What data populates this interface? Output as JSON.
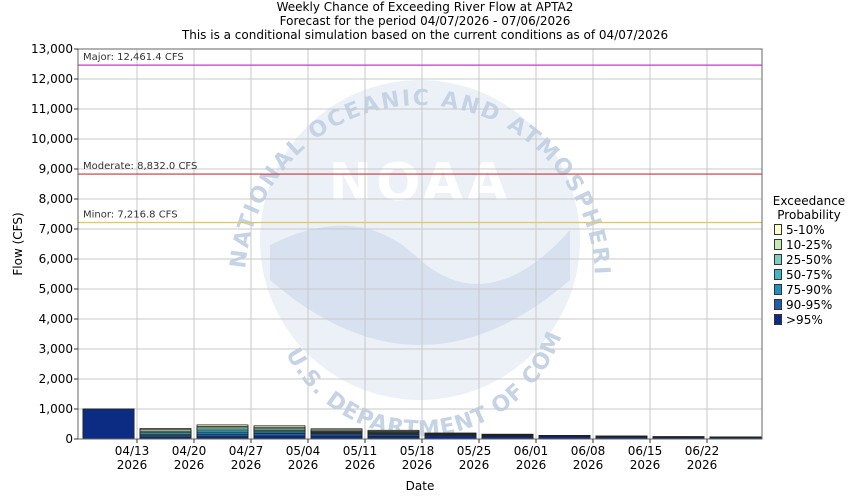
{
  "chart_data": {
    "type": "bar",
    "title_lines": [
      "Weekly Chance of Exceeding River Flow at APTA2",
      "Forecast for the period 04/07/2026 - 07/06/2026",
      "This is a conditional simulation based on the current conditions as of 04/07/2026"
    ],
    "xlabel": "Date",
    "ylabel": "Flow (CFS)",
    "ylim": [
      0,
      13000
    ],
    "yticks": [
      0,
      1000,
      2000,
      3000,
      4000,
      5000,
      6000,
      7000,
      8000,
      9000,
      10000,
      11000,
      12000,
      13000
    ],
    "ytick_labels": [
      "0",
      "1,000",
      "2,000",
      "3,000",
      "4,000",
      "5,000",
      "6,000",
      "7,000",
      "8,000",
      "9,000",
      "10,000",
      "11,000",
      "12,000",
      "13,000"
    ],
    "x_ticks": [
      {
        "line1": "04/13",
        "line2": "2026"
      },
      {
        "line1": "04/20",
        "line2": "2026"
      },
      {
        "line1": "04/27",
        "line2": "2026"
      },
      {
        "line1": "05/04",
        "line2": "2026"
      },
      {
        "line1": "05/11",
        "line2": "2026"
      },
      {
        "line1": "05/18",
        "line2": "2026"
      },
      {
        "line1": "05/25",
        "line2": "2026"
      },
      {
        "line1": "06/01",
        "line2": "2026"
      },
      {
        "line1": "06/08",
        "line2": "2026"
      },
      {
        "line1": "06/15",
        "line2": "2026"
      },
      {
        "line1": "06/22",
        "line2": "2026"
      }
    ],
    "thresholds": [
      {
        "label": "Major: 12,461.4 CFS",
        "value": 12461.4,
        "color": "#cc33cc"
      },
      {
        "label": "Moderate: 8,832.0 CFS",
        "value": 8832.0,
        "color": "#cc3333"
      },
      {
        "label": "Minor: 7,216.8 CFS",
        "value": 7216.8,
        "color": "#e6c84c"
      }
    ],
    "weeks": [
      {
        "levels": [
          1000,
          1000,
          1000,
          1000,
          1000,
          1000,
          1000
        ]
      },
      {
        "levels": [
          350,
          310,
          260,
          210,
          160,
          110,
          60
        ]
      },
      {
        "levels": [
          470,
          420,
          370,
          300,
          230,
          160,
          80
        ]
      },
      {
        "levels": [
          440,
          390,
          340,
          290,
          240,
          190,
          100
        ]
      },
      {
        "levels": [
          340,
          300,
          260,
          230,
          200,
          170,
          100
        ]
      },
      {
        "levels": [
          290,
          260,
          230,
          200,
          170,
          140,
          90
        ]
      },
      {
        "levels": [
          200,
          185,
          170,
          160,
          150,
          140,
          110
        ]
      },
      {
        "levels": [
          160,
          150,
          140,
          130,
          120,
          110,
          90
        ]
      },
      {
        "levels": [
          120,
          115,
          110,
          105,
          100,
          95,
          85
        ]
      },
      {
        "levels": [
          100,
          95,
          90,
          85,
          80,
          75,
          65
        ]
      },
      {
        "levels": [
          80,
          76,
          72,
          68,
          64,
          60,
          52
        ]
      },
      {
        "levels": [
          70,
          66,
          62,
          58,
          54,
          50,
          44
        ]
      }
    ],
    "legend": {
      "title_line1": "Exceedance",
      "title_line2": "Probability",
      "placement": "right",
      "items": [
        {
          "label": "5-10%",
          "color": "#ffffcc"
        },
        {
          "label": "10-25%",
          "color": "#c7e9b4"
        },
        {
          "label": "25-50%",
          "color": "#7fcdbb"
        },
        {
          "label": "50-75%",
          "color": "#41b6c4"
        },
        {
          "label": "75-90%",
          "color": "#1d91c0"
        },
        {
          "label": "90-95%",
          "color": "#225ea8"
        },
        {
          "label": ">95%",
          "color": "#0c2c84"
        }
      ]
    },
    "grid": true
  },
  "watermark": {
    "arc_text": "NATIONAL OCEANIC AND ATMOSPHERIC ADMINISTRATION",
    "bottom_text": "U.S. DEPARTMENT OF COMMERCE",
    "logo_text": "NOAA"
  }
}
